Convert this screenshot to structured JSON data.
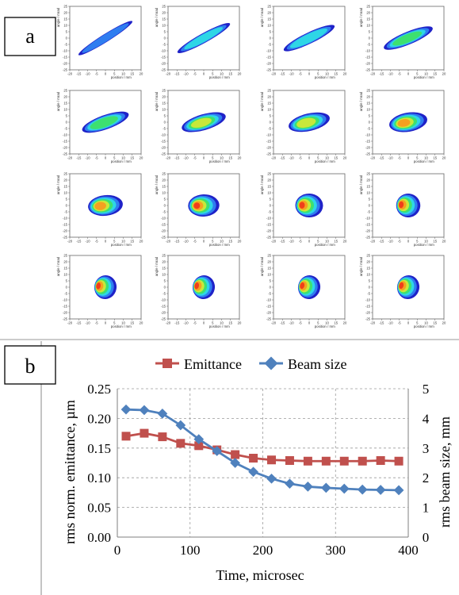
{
  "panel_a": {
    "label": "a",
    "xlabel": "position / mm",
    "ylabel": "angle / mrad",
    "xticks": [
      "-20",
      "-15",
      "-10",
      "-5",
      "0",
      "5",
      "10",
      "15",
      "20"
    ],
    "yticks": [
      "25",
      "20",
      "15",
      "10",
      "5",
      "0",
      "-5",
      "-10",
      "-15",
      "-20",
      "-25"
    ],
    "palette": [
      "#1f22c8",
      "#2f7df0",
      "#2ed6e6",
      "#3de070",
      "#c8e83a",
      "#f5a020",
      "#f03e1a"
    ]
  },
  "panel_b": {
    "label": "b",
    "legend_emittance": "Emittance",
    "legend_beamsize": "Beam size",
    "xlabel": "Time, microsec",
    "ylabel_left": "rms norm. emittance, µm",
    "ylabel_right": "rms beam size, mm",
    "yticks_left": [
      "0.00",
      "0.05",
      "0.10",
      "0.15",
      "0.20",
      "0.25"
    ],
    "yticks_right": [
      "0",
      "1",
      "2",
      "3",
      "4",
      "5"
    ],
    "xticks": [
      "0",
      "100",
      "200",
      "300",
      "400"
    ]
  },
  "chart_data": [
    {
      "type": "scatter",
      "xlabel": "position / mm",
      "ylabel": "angle / mrad",
      "xlim": [
        -20,
        20
      ],
      "ylim": [
        -25,
        25
      ],
      "grid": "4x4 phase-space density maps",
      "frames": 16
    },
    {
      "type": "line",
      "xlabel": "Time, microsec",
      "ylabel": "rms norm. emittance, µm",
      "ylabel_right": "rms beam size, mm",
      "xlim": [
        0,
        400
      ],
      "ylim": [
        0,
        0.25
      ],
      "ylim_right": [
        0,
        5
      ],
      "legend": "top",
      "grid": true,
      "x": [
        12,
        37,
        62,
        87,
        112,
        137,
        162,
        187,
        212,
        237,
        262,
        287,
        312,
        337,
        362,
        387
      ],
      "series": [
        {
          "name": "Emittance",
          "axis": "left",
          "color": "#c0504d",
          "values": [
            0.17,
            0.175,
            0.169,
            0.158,
            0.154,
            0.147,
            0.139,
            0.133,
            0.13,
            0.129,
            0.128,
            0.128,
            0.128,
            0.128,
            0.129,
            0.128
          ]
        },
        {
          "name": "Beam size",
          "axis": "right",
          "color": "#4f81bd",
          "values": [
            4.3,
            4.28,
            4.16,
            3.77,
            3.3,
            2.9,
            2.5,
            2.2,
            1.97,
            1.8,
            1.7,
            1.66,
            1.63,
            1.6,
            1.59,
            1.58
          ]
        }
      ]
    }
  ]
}
